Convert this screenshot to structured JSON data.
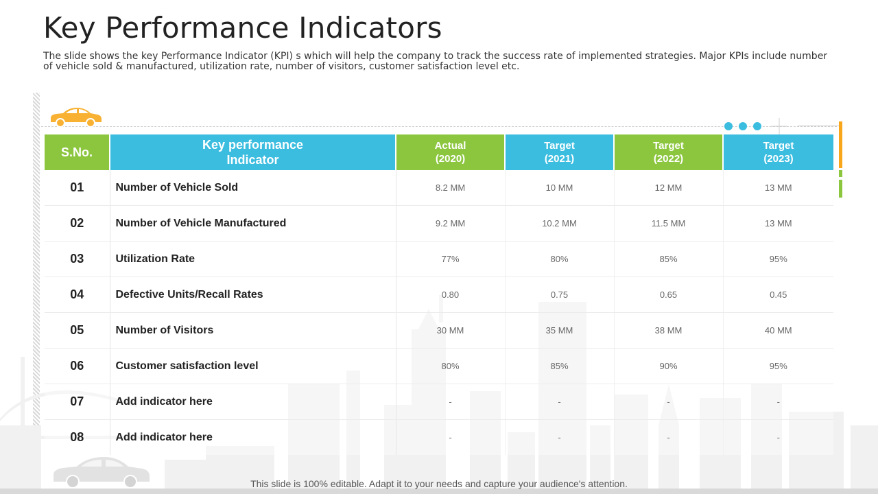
{
  "slide": {
    "title": "Key Performance Indicators",
    "subtitle": "The slide shows the key Performance Indicator (KPI) s which will help the company to track the success rate of implemented strategies. Major KPIs include number of vehicle sold & manufactured, utilization rate, number of visitors, customer satisfaction level etc.",
    "footer": "This slide is 100% editable. Adapt it to your needs and capture your audience's attention."
  },
  "colors": {
    "green": "#8cc63f",
    "blue": "#3bbde0",
    "orange": "#f8a71c"
  },
  "icons": {
    "top_car": "car-icon",
    "bottom_car": "car-icon"
  },
  "table": {
    "headers": {
      "sno": "S.No.",
      "kpi_line1": "Key performance",
      "kpi_line2": "Indicator",
      "actual_2020_line1": "Actual",
      "actual_2020_line2": "(2020)",
      "target_2021_line1": "Target",
      "target_2021_line2": "(2021)",
      "target_2022_line1": "Target",
      "target_2022_line2": "(2022)",
      "target_2023_line1": "Target",
      "target_2023_line2": "(2023)"
    },
    "rows": [
      {
        "sno": "01",
        "name": "Number of Vehicle Sold",
        "v2020": "8.2 MM",
        "v2021": "10 MM",
        "v2022": "12 MM",
        "v2023": "13 MM"
      },
      {
        "sno": "02",
        "name": "Number of Vehicle Manufactured",
        "v2020": "9.2 MM",
        "v2021": "10.2 MM",
        "v2022": "11.5 MM",
        "v2023": "13 MM"
      },
      {
        "sno": "03",
        "name": "Utilization Rate",
        "v2020": "77%",
        "v2021": "80%",
        "v2022": "85%",
        "v2023": "95%"
      },
      {
        "sno": "04",
        "name": "Defective Units/Recall  Rates",
        "v2020": "0.80",
        "v2021": "0.75",
        "v2022": "0.65",
        "v2023": "0.45"
      },
      {
        "sno": "05",
        "name": "Number of Visitors",
        "v2020": "30 MM",
        "v2021": "35 MM",
        "v2022": "38 MM",
        "v2023": "40 MM"
      },
      {
        "sno": "06",
        "name": "Customer satisfaction  level",
        "v2020": "80%",
        "v2021": "85%",
        "v2022": "90%",
        "v2023": "95%"
      },
      {
        "sno": "07",
        "name": "Add indicator here",
        "v2020": "-",
        "v2021": "-",
        "v2022": "-",
        "v2023": "-"
      },
      {
        "sno": "08",
        "name": "Add indicator here",
        "v2020": "-",
        "v2021": "-",
        "v2022": "-",
        "v2023": "-"
      }
    ]
  }
}
